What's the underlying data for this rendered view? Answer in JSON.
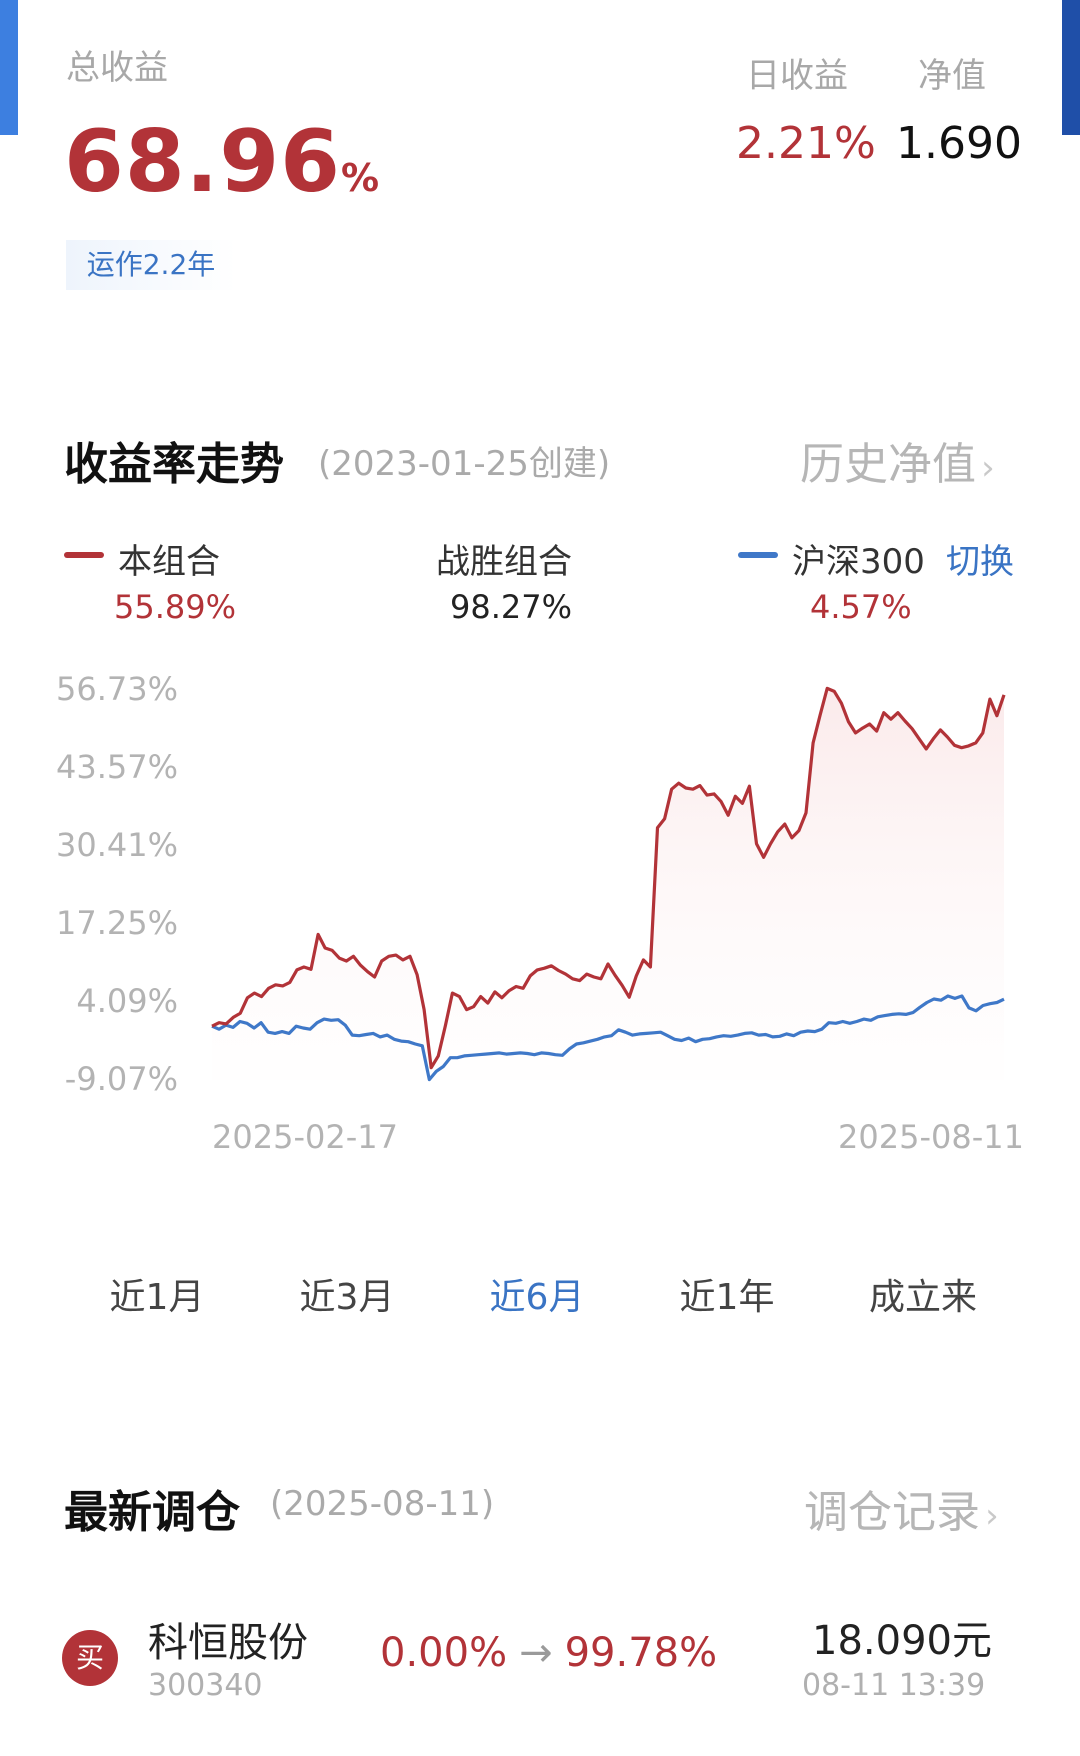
{
  "summary": {
    "total_return_label": "总收益",
    "total_return_value": "68.96",
    "total_return_unit": "%",
    "run_duration": "运作2.2年",
    "daily_return_label": "日收益",
    "daily_return_value": "2.21%",
    "nav_label": "净值",
    "nav_value": "1.690"
  },
  "trend": {
    "title": "收益率走势",
    "created": "(2023-01-25创建)",
    "history_link": "历史净值",
    "legend": {
      "portfolio_name": "本组合",
      "portfolio_value": "55.89%",
      "beat_label": "战胜组合",
      "beat_value": "98.27%",
      "benchmark_name": "沪深300",
      "benchmark_value": "4.57%",
      "switch_label": "切换"
    },
    "range_tabs": [
      "近1月",
      "近3月",
      "近6月",
      "近1年",
      "成立来"
    ],
    "active_tab": 2
  },
  "chart_data": {
    "type": "line",
    "x_start_label": "2025-02-17",
    "x_end_label": "2025-08-11",
    "y_ticks": [
      "56.73%",
      "43.57%",
      "30.41%",
      "17.25%",
      "4.09%",
      "-9.07%"
    ],
    "ylim": [
      -9.07,
      56.73
    ],
    "series": [
      {
        "name": "本组合",
        "color": "#b23338",
        "values": [
          0.0,
          0.6,
          0.4,
          1.5,
          2.2,
          4.8,
          5.6,
          5.0,
          6.4,
          7.0,
          6.8,
          7.4,
          9.5,
          10.0,
          9.6,
          15.5,
          13.2,
          12.8,
          11.5,
          11.0,
          11.8,
          10.3,
          9.2,
          8.3,
          11.0,
          11.8,
          12.0,
          11.2,
          11.8,
          8.7,
          2.8,
          -7.0,
          -5.0,
          0.1,
          5.6,
          5.0,
          2.8,
          3.3,
          5.0,
          3.9,
          5.8,
          4.8,
          6.0,
          6.7,
          6.4,
          8.5,
          9.5,
          9.8,
          10.2,
          9.4,
          8.8,
          8.0,
          7.7,
          8.8,
          8.3,
          8.0,
          10.5,
          8.6,
          6.9,
          4.9,
          8.5,
          11.2,
          10.0,
          33.5,
          35.0,
          40.0,
          41.0,
          40.2,
          40.0,
          40.6,
          39.0,
          39.2,
          37.9,
          35.6,
          38.8,
          37.6,
          40.5,
          30.8,
          28.5,
          30.8,
          32.8,
          34.1,
          31.8,
          33.0,
          36.0,
          47.8,
          52.5,
          57.0,
          56.5,
          54.5,
          51.4,
          49.5,
          50.3,
          51.0,
          49.8,
          52.9,
          51.8,
          52.9,
          51.5,
          50.2,
          48.5,
          46.8,
          48.5,
          50.0,
          48.8,
          47.4,
          47.0,
          47.3,
          47.8,
          49.5,
          55.2,
          52.4,
          55.9
        ]
      },
      {
        "name": "沪深300",
        "color": "#3f78c8",
        "values": [
          0.0,
          -0.5,
          0.2,
          -0.2,
          0.8,
          0.5,
          -0.3,
          0.6,
          -1.0,
          -1.2,
          -0.9,
          -1.2,
          0.0,
          -0.3,
          -0.5,
          0.6,
          1.2,
          1.0,
          1.1,
          0.2,
          -1.5,
          -1.6,
          -1.4,
          -1.2,
          -1.8,
          -1.5,
          -2.2,
          -2.5,
          -2.6,
          -3.0,
          -3.3,
          -9.0,
          -7.6,
          -6.8,
          -5.3,
          -5.3,
          -5.0,
          -4.9,
          -4.8,
          -4.7,
          -4.6,
          -4.5,
          -4.7,
          -4.6,
          -4.5,
          -4.6,
          -4.8,
          -4.5,
          -4.6,
          -4.8,
          -4.9,
          -3.8,
          -3.0,
          -2.8,
          -2.5,
          -2.2,
          -1.8,
          -1.6,
          -0.6,
          -1.0,
          -1.5,
          -1.3,
          -1.2,
          -1.1,
          -1.0,
          -1.6,
          -2.2,
          -2.4,
          -2.0,
          -2.6,
          -2.2,
          -2.1,
          -1.8,
          -1.6,
          -1.7,
          -1.5,
          -1.2,
          -1.1,
          -1.5,
          -1.4,
          -1.8,
          -1.7,
          -1.3,
          -1.6,
          -1.0,
          -0.8,
          -0.9,
          -0.5,
          0.6,
          0.5,
          0.8,
          0.5,
          0.8,
          1.2,
          1.0,
          1.6,
          1.8,
          2.0,
          2.1,
          2.0,
          2.3,
          3.2,
          4.0,
          4.6,
          4.4,
          5.1,
          4.7,
          5.1,
          3.1,
          2.6,
          3.5,
          3.8,
          4.0,
          4.57
        ]
      }
    ]
  },
  "rebalance": {
    "title": "最新调仓",
    "date": "(2025-08-11)",
    "record_link": "调仓记录",
    "item": {
      "action": "买",
      "name": "科恒股份",
      "code": "300340",
      "from_pct": "0.00%",
      "to_pct": "99.78%",
      "price": "18.090元",
      "time": "08-11  13:39"
    }
  }
}
